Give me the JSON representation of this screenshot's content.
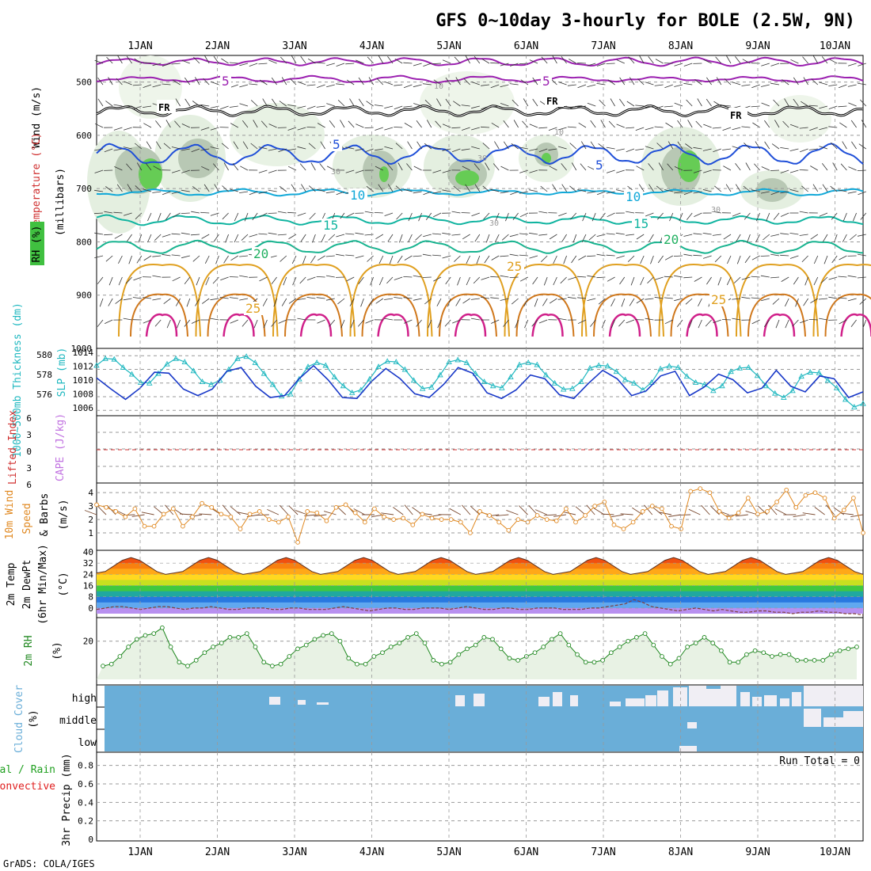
{
  "title": "GFS 0~10day 3-hourly for BOLE (2.5W, 9N)",
  "footer": "GrADS: COLA/IGES",
  "dates": [
    "1JAN",
    "2JAN",
    "3JAN",
    "4JAN",
    "5JAN",
    "6JAN",
    "7JAN",
    "8JAN",
    "9JAN",
    "10JAN"
  ],
  "colors": {
    "grid": "#999999",
    "frame": "#000000",
    "purple": "#9b20b0",
    "freezing": "#000000",
    "blue": "#1f4fd8",
    "sky": "#10a8d8",
    "teal": "#10b4a0",
    "green": "#20b060",
    "orange": "#e0a020",
    "darkorange": "#d0781c",
    "magenta": "#d0208a",
    "slp": "#20b8c0",
    "thick": "#1838c8",
    "lifted": "#d03030",
    "cape": "#c070e0",
    "wind10": "#e08820",
    "rh2m": "#208820",
    "cloud": "#6aaed8",
    "cloudClear": "#f0eef4",
    "precipTotal": "#20a020",
    "precipConv": "#e02020"
  },
  "panels": {
    "upper": {
      "ylabel_wind": "Wind (m/s)",
      "ylabel_temp": "Temperature (°C)",
      "ylabel_rh": "RH (%)",
      "ylabel_unit": "(millibars)",
      "levels": [
        "500",
        "600",
        "700",
        "800",
        "900",
        "1000"
      ],
      "contour_labels": [
        {
          "text": "5",
          "level": "purple"
        },
        {
          "text": "5",
          "level": "purple"
        },
        {
          "text": "FR",
          "level": "freezing"
        },
        {
          "text": "FR",
          "level": "freezing"
        },
        {
          "text": "FR",
          "level": "freezing"
        },
        {
          "text": "5",
          "level": "blue"
        },
        {
          "text": "5",
          "level": "blue"
        },
        {
          "text": "10",
          "level": "sky"
        },
        {
          "text": "10",
          "level": "sky"
        },
        {
          "text": "15",
          "level": "teal"
        },
        {
          "text": "15",
          "level": "teal"
        },
        {
          "text": "20",
          "level": "green"
        },
        {
          "text": "20",
          "level": "green"
        },
        {
          "text": "25",
          "level": "orange"
        },
        {
          "text": "25",
          "level": "orange"
        },
        {
          "text": "25",
          "level": "orange"
        }
      ],
      "rh_labels": [
        "10",
        "10",
        "30",
        "30",
        "30",
        "30"
      ]
    },
    "slp": {
      "ylabel_left": "1000~500mb Thickness (dm)",
      "ylabel_right": "SLP (mb)",
      "left_ticks": [
        "580",
        "578",
        "576"
      ],
      "right_ticks": [
        "1014",
        "1012",
        "1010",
        "1008",
        "1006"
      ]
    },
    "cape": {
      "ylabel_left": "Lifted Index",
      "ylabel_right": "CAPE (J/kg)",
      "ticks": [
        "6",
        "3",
        "0",
        "3",
        "6"
      ]
    },
    "wind10": {
      "ylabel_a": "10m Wind",
      "ylabel_b": "Speed",
      "ylabel_c": "& Barbs",
      "unit": "(m/s)",
      "ticks": [
        "4",
        "3",
        "2",
        "1"
      ]
    },
    "temp2m": {
      "ylabel_a": "2m Temp",
      "ylabel_b": "2m DewPt",
      "ylabel_c": "(6hr Min/Max)",
      "unit": "(°C)",
      "ticks": [
        "40",
        "32",
        "24",
        "16",
        "8",
        "0"
      ]
    },
    "rh2m": {
      "ylabel": "2m RH",
      "unit": "(%)",
      "ticks": [
        "20"
      ]
    },
    "cloud": {
      "ylabel": "Cloud Cover",
      "unit": "(%)",
      "ticks": [
        "high",
        "middle",
        "low"
      ]
    },
    "precip": {
      "ylabel_a": "Total / Rain",
      "ylabel_b": "Convective",
      "ylabel_c": "3hr Precip (mm)",
      "run_total": "Run Total = 0",
      "ticks": [
        "0.8",
        "0.6",
        "0.4",
        "0.2",
        "0"
      ]
    }
  },
  "chart_data": [
    {
      "type": "line",
      "name": "SLP (mb)",
      "series": [
        {
          "name": "SLP",
          "values": [
            1012.6,
            1013.6,
            1013.5,
            1012.3,
            1011.3,
            1010.1,
            1010.0,
            1011.4,
            1012.8,
            1013.6,
            1013.1,
            1011.8,
            1010.2,
            1009.8,
            1010.4,
            1012.0,
            1013.6,
            1013.9,
            1013.0,
            1011.4,
            1009.8,
            1008.1,
            1008.4,
            1010.6,
            1012.4,
            1013.0,
            1012.6,
            1010.9,
            1009.6,
            1008.6,
            1009.0,
            1010.6,
            1012.4,
            1013.2,
            1013.1,
            1012.0,
            1010.4,
            1009.2,
            1009.4,
            1011.2,
            1013.1,
            1013.4,
            1013.0,
            1011.4,
            1010.2,
            1009.6,
            1009.3,
            1010.9,
            1012.7,
            1013.0,
            1012.7,
            1011.2,
            1010.0,
            1009.1,
            1009.2,
            1010.2,
            1012.2,
            1012.6,
            1012.5,
            1011.7,
            1010.5,
            1010.0,
            1009.0,
            1010.1,
            1012.1,
            1012.5,
            1012.3,
            1011.0,
            1010.1,
            1009.8,
            1008.9,
            1009.6,
            1011.7,
            1012.2,
            1012.3,
            1011.1,
            1009.6,
            1008.5,
            1007.9,
            1008.9,
            1011.0,
            1011.6,
            1011.5,
            1010.4,
            1009.3,
            1007.6,
            1006.5,
            1007.0
          ]
        }
      ]
    },
    {
      "type": "line",
      "name": "1000~500mb Thickness (dm)",
      "series": [
        {
          "name": "Thickness",
          "values": [
            578.2,
            577.0,
            575.9,
            577.1,
            578.8,
            578.7,
            577.0,
            576.3,
            577.0,
            578.9,
            579.3,
            577.3,
            576.1,
            576.3,
            578.1,
            579.5,
            578.0,
            576.1,
            576.0,
            577.8,
            579.2,
            578.1,
            576.5,
            576.1,
            577.5,
            579.3,
            578.7,
            576.6,
            576.0,
            576.9,
            578.5,
            578.1,
            576.4,
            576.0,
            577.6,
            579.0,
            578.1,
            576.3,
            576.8,
            578.4,
            578.9,
            576.3,
            577.2,
            578.6,
            578.0,
            576.6,
            577.1,
            579.0,
            577.3,
            576.7,
            578.4,
            578.1,
            576.1,
            576.7
          ]
        }
      ]
    },
    {
      "type": "line",
      "name": "10m Wind Speed (m/s)",
      "series": [
        {
          "name": "Wind",
          "values": [
            3.1,
            2.9,
            2.6,
            2.2,
            2.8,
            1.5,
            1.5,
            2.4,
            2.8,
            1.5,
            2.2,
            3.2,
            2.9,
            2.4,
            2.2,
            1.3,
            2.4,
            2.6,
            2.0,
            1.8,
            2.2,
            0.3,
            2.6,
            2.5,
            1.9,
            2.9,
            3.1,
            2.5,
            1.8,
            2.8,
            2.2,
            2.0,
            2.1,
            1.6,
            2.4,
            2.1,
            2.0,
            2.0,
            1.8,
            1.0,
            2.6,
            2.3,
            1.8,
            1.2,
            2.0,
            1.8,
            2.3,
            2.0,
            1.9,
            2.8,
            1.8,
            2.3,
            3.0,
            3.3,
            1.6,
            1.3,
            1.8,
            2.6,
            3.0,
            2.8,
            1.5,
            1.3,
            4.1,
            4.3,
            4.0,
            2.6,
            2.1,
            2.5,
            3.6,
            2.4,
            2.6,
            3.3,
            4.2,
            2.9,
            3.8,
            4.0,
            3.6,
            2.1,
            2.7,
            3.6,
            1.0
          ]
        }
      ]
    },
    {
      "type": "line",
      "name": "2m RH (%)",
      "series": [
        {
          "name": "RH",
          "values": [
            7,
            8,
            12,
            17,
            21,
            23,
            24,
            27,
            17,
            9,
            7,
            10,
            14,
            17,
            19,
            22,
            22,
            24,
            17,
            9,
            7,
            8,
            12,
            16,
            18,
            21,
            23,
            24,
            20,
            11,
            8,
            8,
            12,
            14,
            17,
            19,
            22,
            24,
            19,
            10,
            8,
            9,
            13,
            16,
            18,
            22,
            21,
            16,
            11,
            10,
            12,
            14,
            17,
            21,
            24,
            18,
            13,
            9,
            9,
            10,
            14,
            17,
            20,
            22,
            24,
            18,
            12,
            8,
            11,
            17,
            19,
            22,
            19,
            15,
            9,
            9,
            13,
            15,
            14,
            12,
            13,
            13,
            10,
            10,
            10,
            10,
            13,
            15,
            16,
            17
          ]
        }
      ]
    },
    {
      "type": "area",
      "name": "2m Temp (°C)",
      "series": [
        {
          "name": "Temp",
          "values": [
            25,
            26,
            30,
            34,
            36,
            34,
            30,
            26,
            24,
            25,
            26,
            30,
            34,
            36,
            34,
            30,
            26,
            24,
            25,
            26,
            30,
            34,
            36,
            34,
            30,
            26,
            24,
            25,
            26,
            30,
            34,
            36,
            34,
            30,
            26,
            24,
            25,
            26,
            30,
            34,
            36,
            34,
            30,
            26,
            24,
            25,
            26,
            30,
            34,
            36,
            34,
            30,
            26,
            24,
            25,
            26,
            30,
            34,
            36,
            34,
            30,
            26,
            24,
            25,
            26,
            30,
            34,
            36,
            34,
            30,
            26,
            24,
            25,
            26,
            30,
            34,
            36,
            34,
            30,
            26,
            24,
            25,
            26,
            30,
            34,
            36,
            34,
            30,
            26,
            24
          ]
        }
      ]
    },
    {
      "type": "line",
      "name": "2m DewPt (°C)",
      "series": [
        {
          "name": "DewPt",
          "values": [
            -1,
            0,
            1,
            1,
            0,
            -1,
            0,
            1,
            1,
            0,
            -1,
            0,
            0,
            1,
            0,
            -1,
            -1,
            0,
            0,
            0,
            -1,
            -1,
            0,
            0,
            -1,
            -1,
            -1,
            0,
            1,
            0,
            -1,
            -2,
            -1,
            0,
            0,
            -1,
            -1,
            0,
            0,
            0,
            -1,
            0,
            1,
            0,
            -1,
            -1,
            0,
            0,
            -1,
            -1,
            0,
            0,
            0,
            -1,
            -1,
            -1,
            0,
            0,
            1,
            2,
            3,
            6,
            4,
            1,
            0,
            -1,
            -2,
            -1,
            0,
            -1,
            -2,
            -1,
            -2,
            -3,
            -3,
            -2,
            -2,
            -3,
            -3,
            -4,
            -3,
            -3,
            -2,
            -3,
            -3,
            -4,
            -4,
            -5
          ]
        }
      ]
    },
    {
      "type": "heatmap",
      "name": "Cloud Cover high (%)",
      "series": [
        {
          "name": "high",
          "values": [
            0,
            0,
            0,
            0,
            0,
            0,
            0,
            0,
            0,
            0,
            0,
            0,
            0,
            0,
            0,
            0,
            0,
            0,
            0,
            0,
            0,
            0,
            0,
            0,
            0,
            0,
            0,
            0,
            0,
            0,
            0,
            0,
            0,
            0,
            0,
            0,
            0,
            0,
            0,
            0,
            0,
            0,
            0,
            0,
            0,
            0,
            0,
            0,
            0,
            0,
            0,
            0,
            0,
            0,
            0,
            0,
            0,
            0,
            0,
            0,
            0,
            0,
            0,
            0,
            0,
            0,
            0,
            0,
            0,
            0,
            0,
            0,
            0,
            0,
            0,
            0,
            0,
            0,
            0,
            0,
            0,
            0,
            0,
            0,
            0,
            0,
            0,
            0,
            0,
            0
          ]
        }
      ]
    },
    {
      "type": "bar",
      "name": "3hr Precip (mm)",
      "categories": [
        "1JAN",
        "2JAN",
        "3JAN",
        "4JAN",
        "5JAN",
        "6JAN",
        "7JAN",
        "8JAN",
        "9JAN",
        "10JAN"
      ],
      "values": [
        0,
        0,
        0,
        0,
        0,
        0,
        0,
        0,
        0,
        0
      ],
      "ylim": [
        0,
        0.9
      ]
    }
  ]
}
